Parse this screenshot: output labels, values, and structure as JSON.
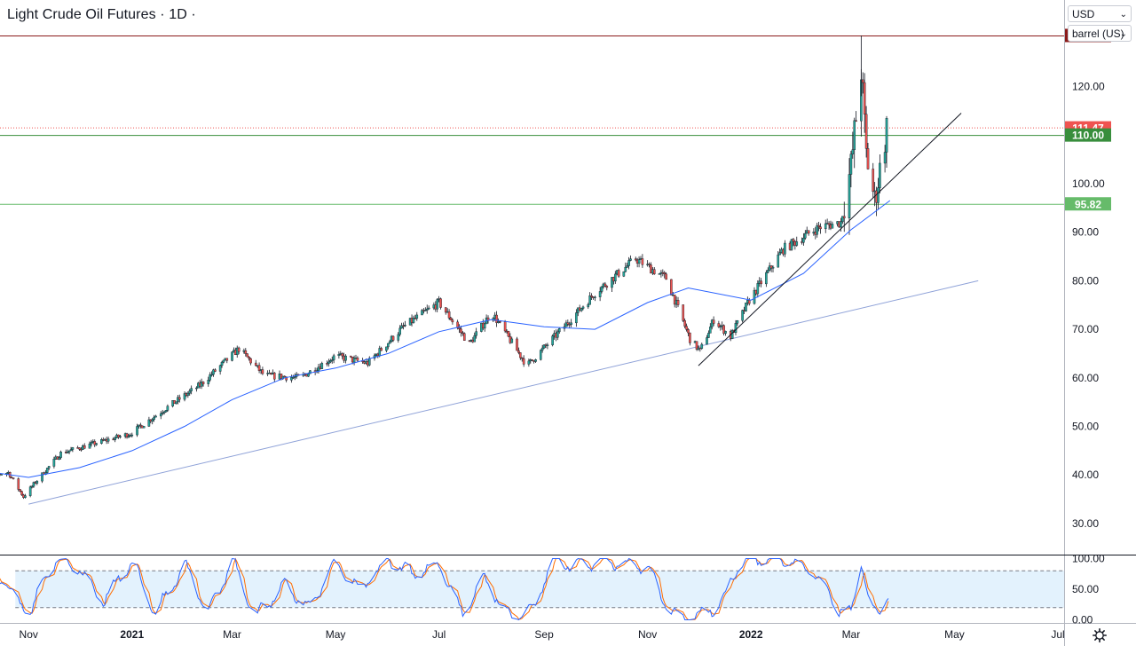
{
  "title": "Light Crude Oil Futures · 1D ·",
  "controls": {
    "currency": "USD",
    "unit": "barrel (US)"
  },
  "icons": {
    "chevron": "chevron-down-icon",
    "settings": "gear-icon"
  },
  "colors": {
    "up": "#26a69a",
    "down": "#ef5350",
    "ma": "#2962ff",
    "resistance": "#8b1a1a",
    "current": "#ef5350",
    "support_green": "#388e3c",
    "long_trend": "#8fa2d8",
    "stoch_k": "#2962ff",
    "stoch_d": "#ff6d00",
    "stoch_band": "#e3f2fd"
  },
  "chart_data": [
    {
      "type": "candlestick",
      "title": "Light Crude Oil Futures · 1D ·",
      "interval": "1D",
      "currency": "USD",
      "unit": "barrel (US)",
      "x_ticks": [
        "Nov",
        "2021",
        "Mar",
        "May",
        "Jul",
        "Sep",
        "Nov",
        "2022",
        "Mar",
        "May",
        "Jul"
      ],
      "y_ticks": [
        "30.00",
        "40.00",
        "50.00",
        "60.00",
        "70.00",
        "80.00",
        "90.00",
        "100.00",
        "110.00",
        "120.00"
      ],
      "ylim": [
        23.6,
        137.8
      ],
      "close_path": [
        [
          "2020-10-01",
          39.5
        ],
        [
          "2020-10-20",
          40.5
        ],
        [
          "2020-10-29",
          35.5
        ],
        [
          "2020-11-05",
          38.5
        ],
        [
          "2020-11-20",
          44.5
        ],
        [
          "2020-12-10",
          46.5
        ],
        [
          "2020-12-31",
          48.5
        ],
        [
          "2021-01-20",
          53.5
        ],
        [
          "2021-02-10",
          58.5
        ],
        [
          "2021-03-05",
          66.0
        ],
        [
          "2021-03-20",
          60.5
        ],
        [
          "2021-04-10",
          60.0
        ],
        [
          "2021-05-01",
          64.5
        ],
        [
          "2021-05-20",
          63.0
        ],
        [
          "2021-06-10",
          70.5
        ],
        [
          "2021-07-01",
          75.5
        ],
        [
          "2021-07-19",
          67.0
        ],
        [
          "2021-08-01",
          73.5
        ],
        [
          "2021-08-22",
          62.5
        ],
        [
          "2021-09-10",
          69.5
        ],
        [
          "2021-10-01",
          77.5
        ],
        [
          "2021-10-25",
          84.5
        ],
        [
          "2021-11-12",
          80.5
        ],
        [
          "2021-11-26",
          68.0
        ],
        [
          "2021-12-02",
          65.5
        ],
        [
          "2021-12-10",
          72.0
        ],
        [
          "2021-12-20",
          68.5
        ],
        [
          "2021-12-31",
          76.0
        ],
        [
          "2022-01-20",
          86.5
        ],
        [
          "2022-02-10",
          91.0
        ],
        [
          "2022-02-23",
          92.0
        ],
        [
          "2022-03-01",
          103.5
        ],
        [
          "2022-03-07",
          123.7
        ],
        [
          "2022-03-10",
          106.0
        ],
        [
          "2022-03-15",
          96.5
        ],
        [
          "2022-03-22",
          111.47
        ]
      ],
      "ma_path": [
        [
          "2020-10-01",
          41.0
        ],
        [
          "2020-11-01",
          39.5
        ],
        [
          "2020-12-01",
          41.5
        ],
        [
          "2021-01-01",
          45.0
        ],
        [
          "2021-02-01",
          50.0
        ],
        [
          "2021-03-01",
          55.5
        ],
        [
          "2021-04-01",
          60.0
        ],
        [
          "2021-05-01",
          62.0
        ],
        [
          "2021-06-01",
          65.0
        ],
        [
          "2021-07-01",
          69.5
        ],
        [
          "2021-08-01",
          72.0
        ],
        [
          "2021-09-01",
          70.5
        ],
        [
          "2021-10-01",
          70.0
        ],
        [
          "2021-11-01",
          75.5
        ],
        [
          "2021-11-25",
          78.5
        ],
        [
          "2022-01-01",
          76.0
        ],
        [
          "2022-02-01",
          81.5
        ],
        [
          "2022-03-01",
          90.5
        ],
        [
          "2022-03-24",
          96.5
        ]
      ],
      "annotations": {
        "all_time_high": {
          "value": 130.5,
          "label": "130.50"
        },
        "current_price": {
          "value": 111.47,
          "label": "111.47"
        },
        "resistance": {
          "value": 110.0,
          "label": "110.00"
        },
        "support": {
          "value": 95.82,
          "label": "95.82"
        },
        "long_trendline": {
          "from": [
            "2020-11-01",
            34.0
          ],
          "to": [
            "2022-05-15",
            80.0
          ]
        },
        "short_trendline": {
          "from": [
            "2021-12-01",
            62.5
          ],
          "to": [
            "2022-05-05",
            114.5
          ]
        }
      }
    },
    {
      "type": "line",
      "indicator": "Stochastic",
      "y_ticks": [
        "0.00",
        "50.00",
        "100.00"
      ],
      "ylim": [
        -5,
        105
      ],
      "bands": [
        20,
        80
      ],
      "k_path": [
        [
          "2020-10-01",
          80
        ],
        [
          "2020-10-08",
          90
        ],
        [
          "2020-10-20",
          55
        ],
        [
          "2020-11-01",
          8
        ],
        [
          "2020-11-15",
          95
        ],
        [
          "2020-12-01",
          85
        ],
        [
          "2020-12-15",
          30
        ],
        [
          "2021-01-01",
          95
        ],
        [
          "2021-01-15",
          10
        ],
        [
          "2021-02-01",
          88
        ],
        [
          "2021-02-15",
          12
        ],
        [
          "2021-03-01",
          98
        ],
        [
          "2021-03-15",
          5
        ],
        [
          "2021-04-01",
          60
        ],
        [
          "2021-04-15",
          18
        ],
        [
          "2021-05-01",
          95
        ],
        [
          "2021-05-15",
          50
        ],
        [
          "2021-06-01",
          95
        ],
        [
          "2021-06-15",
          75
        ],
        [
          "2021-07-01",
          90
        ],
        [
          "2021-07-15",
          10
        ],
        [
          "2021-07-28",
          70
        ],
        [
          "2021-08-10",
          8
        ],
        [
          "2021-08-25",
          12
        ],
        [
          "2021-09-05",
          96
        ],
        [
          "2021-09-20",
          90
        ],
        [
          "2021-10-05",
          95
        ],
        [
          "2021-10-20",
          90
        ],
        [
          "2021-11-01",
          88
        ],
        [
          "2021-11-15",
          8
        ],
        [
          "2021-11-30",
          6
        ],
        [
          "2021-12-15",
          28
        ],
        [
          "2021-12-25",
          95
        ],
        [
          "2022-01-10",
          98
        ],
        [
          "2022-01-25",
          96
        ],
        [
          "2022-02-10",
          70
        ],
        [
          "2022-02-20",
          20
        ],
        [
          "2022-03-01",
          10
        ],
        [
          "2022-03-07",
          98
        ],
        [
          "2022-03-12",
          20
        ],
        [
          "2022-03-17",
          8
        ],
        [
          "2022-03-23",
          45
        ]
      ]
    }
  ]
}
